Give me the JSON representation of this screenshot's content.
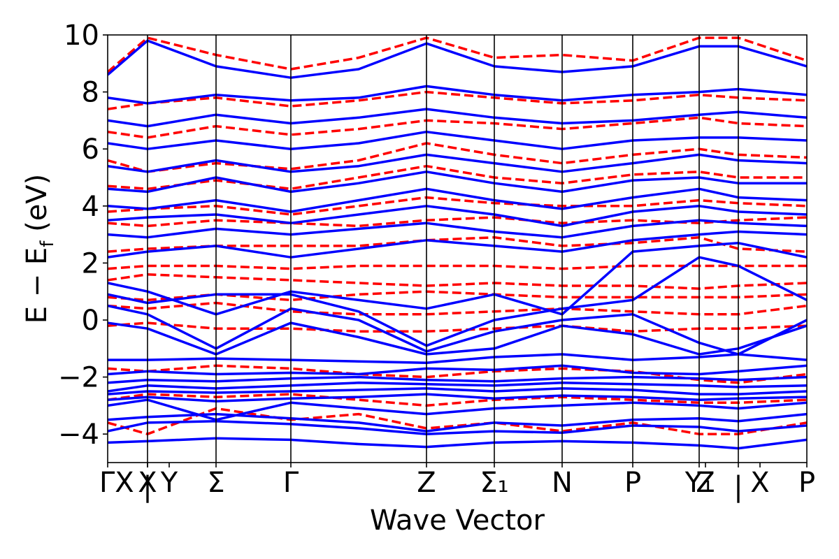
{
  "chart_data": {
    "type": "line",
    "title": "",
    "xlabel": "Wave Vector",
    "ylabel": "E − E_f (eV)",
    "ylabel_main": "E − E",
    "ylabel_sub": "f",
    "ylabel_unit": " (eV)",
    "ylim": [
      -5,
      10
    ],
    "yticks": [
      -4,
      -2,
      0,
      2,
      4,
      6,
      8,
      10
    ],
    "ytick_labels": [
      "−4",
      "−2",
      "0",
      "2",
      "4",
      "6",
      "8",
      "10"
    ],
    "grid": false,
    "legend": "none",
    "kpath": [
      {
        "label": "ΓX",
        "x": 0.0,
        "line": false
      },
      {
        "label": "X",
        "x": 0.57,
        "line": true
      },
      {
        "label": "|",
        "x": 0.57,
        "line": false
      },
      {
        "label": "Y",
        "x": 0.88,
        "line": false
      },
      {
        "label": "Σ",
        "x": 1.55,
        "line": true
      },
      {
        "label": "Γ",
        "x": 2.62,
        "line": true
      },
      {
        "label": "Z",
        "x": 4.56,
        "line": true
      },
      {
        "label": "Σ₁",
        "x": 5.53,
        "line": true
      },
      {
        "label": "N",
        "x": 6.5,
        "line": true
      },
      {
        "label": "P",
        "x": 7.51,
        "line": true
      },
      {
        "label": "Y₁",
        "x": 8.46,
        "line": true
      },
      {
        "label": "Z",
        "x": 8.55,
        "line": false
      },
      {
        "label": "|",
        "x": 9.02,
        "line": true
      },
      {
        "label": "X",
        "x": 9.33,
        "line": false
      },
      {
        "label": "P",
        "x": 10.0,
        "line": false
      }
    ],
    "x": [
      0.0,
      0.57,
      1.55,
      2.62,
      3.59,
      4.56,
      5.53,
      6.5,
      7.51,
      8.46,
      9.02,
      10.0
    ],
    "series": [
      {
        "style": "solid",
        "values": [
          -4.3,
          -4.25,
          -4.15,
          -4.2,
          -4.35,
          -4.45,
          -4.3,
          -4.25,
          -4.3,
          -4.4,
          -4.5,
          -4.2
        ]
      },
      {
        "style": "solid",
        "values": [
          -3.9,
          -3.6,
          -3.55,
          -3.65,
          -3.8,
          -4.0,
          -3.9,
          -3.95,
          -3.7,
          -3.75,
          -3.9,
          -3.7
        ]
      },
      {
        "style": "solid",
        "values": [
          -3.5,
          -3.4,
          -3.3,
          -3.45,
          -3.6,
          -3.9,
          -3.6,
          -3.7,
          -3.5,
          -3.45,
          -3.55,
          -3.3
        ]
      },
      {
        "style": "solid",
        "values": [
          -3.0,
          -2.8,
          -3.5,
          -2.9,
          -3.1,
          -3.3,
          -3.1,
          -3.0,
          -2.9,
          -3.0,
          -3.1,
          -2.9
        ]
      },
      {
        "style": "solid",
        "values": [
          -2.8,
          -2.7,
          -2.85,
          -2.75,
          -2.7,
          -2.6,
          -2.75,
          -2.65,
          -2.7,
          -2.8,
          -2.75,
          -2.7
        ]
      },
      {
        "style": "solid",
        "values": [
          -2.6,
          -2.5,
          -2.55,
          -2.5,
          -2.45,
          -2.4,
          -2.5,
          -2.4,
          -2.45,
          -2.6,
          -2.6,
          -2.5
        ]
      },
      {
        "style": "solid",
        "values": [
          -2.5,
          -2.3,
          -2.4,
          -2.3,
          -2.2,
          -2.25,
          -2.3,
          -2.2,
          -2.25,
          -2.3,
          -2.35,
          -2.3
        ]
      },
      {
        "style": "solid",
        "values": [
          -2.2,
          -2.1,
          -2.15,
          -2.05,
          -2.0,
          -2.1,
          -2.15,
          -2.05,
          -2.0,
          -2.05,
          -2.1,
          -2.0
        ]
      },
      {
        "style": "solid",
        "values": [
          -1.9,
          -1.8,
          -1.9,
          -1.85,
          -1.9,
          -1.7,
          -1.75,
          -1.6,
          -1.85,
          -1.9,
          -1.8,
          -1.6
        ]
      },
      {
        "style": "solid",
        "values": [
          -1.4,
          -1.4,
          -1.35,
          -1.4,
          -1.45,
          -1.5,
          -1.3,
          -1.2,
          -1.4,
          -1.3,
          -1.2,
          -1.4
        ]
      },
      {
        "style": "solid",
        "values": [
          -0.1,
          -0.3,
          -1.2,
          -0.1,
          -0.6,
          -1.2,
          -1.0,
          -0.2,
          -0.5,
          -1.2,
          -1.0,
          -0.2
        ]
      },
      {
        "style": "solid",
        "values": [
          0.5,
          0.2,
          -1.0,
          0.4,
          0.0,
          -1.1,
          -0.4,
          0.0,
          0.2,
          -0.8,
          -1.2,
          0.0
        ]
      },
      {
        "style": "solid",
        "values": [
          0.9,
          0.6,
          0.9,
          0.9,
          0.3,
          -0.9,
          0.0,
          0.4,
          0.7,
          2.2,
          1.9,
          0.7
        ]
      },
      {
        "style": "solid",
        "values": [
          1.3,
          1.0,
          0.2,
          1.0,
          0.7,
          0.4,
          0.9,
          0.2,
          2.4,
          2.6,
          2.7,
          2.2
        ]
      },
      {
        "style": "solid",
        "values": [
          2.2,
          2.4,
          2.6,
          2.2,
          2.5,
          2.8,
          2.6,
          2.4,
          2.8,
          3.0,
          3.1,
          3.0
        ]
      },
      {
        "style": "solid",
        "values": [
          3.0,
          2.9,
          3.2,
          3.0,
          3.2,
          3.4,
          3.1,
          2.9,
          3.3,
          3.5,
          3.4,
          3.3
        ]
      },
      {
        "style": "solid",
        "values": [
          3.5,
          3.6,
          3.7,
          3.4,
          3.7,
          4.0,
          3.7,
          3.3,
          3.8,
          4.0,
          3.8,
          3.7
        ]
      },
      {
        "style": "solid",
        "values": [
          4.0,
          3.9,
          4.2,
          3.8,
          4.2,
          4.6,
          4.2,
          3.9,
          4.3,
          4.6,
          4.3,
          4.2
        ]
      },
      {
        "style": "solid",
        "values": [
          4.6,
          4.5,
          5.0,
          4.5,
          4.8,
          5.2,
          4.8,
          4.5,
          4.9,
          5.0,
          4.8,
          4.8
        ]
      },
      {
        "style": "solid",
        "values": [
          5.4,
          5.2,
          5.6,
          5.2,
          5.4,
          5.8,
          5.5,
          5.2,
          5.5,
          5.8,
          5.6,
          5.5
        ]
      },
      {
        "style": "solid",
        "values": [
          6.2,
          6.0,
          6.3,
          6.0,
          6.2,
          6.6,
          6.3,
          6.0,
          6.3,
          6.4,
          6.4,
          6.3
        ]
      },
      {
        "style": "solid",
        "values": [
          7.0,
          6.8,
          7.2,
          6.9,
          7.1,
          7.4,
          7.1,
          6.9,
          7.0,
          7.2,
          7.3,
          7.1
        ]
      },
      {
        "style": "solid",
        "values": [
          7.8,
          7.6,
          7.9,
          7.7,
          7.8,
          8.2,
          7.9,
          7.7,
          7.9,
          8.0,
          8.1,
          7.9
        ]
      },
      {
        "style": "solid",
        "values": [
          8.6,
          9.8,
          8.9,
          8.5,
          8.8,
          9.7,
          8.9,
          8.7,
          8.9,
          9.6,
          9.6,
          8.9
        ]
      },
      {
        "style": "dashed",
        "values": [
          -3.6,
          -4.0,
          -3.1,
          -3.5,
          -3.3,
          -3.8,
          -3.6,
          -3.9,
          -3.6,
          -4.0,
          -4.0,
          -3.6
        ]
      },
      {
        "style": "dashed",
        "values": [
          -2.8,
          -2.6,
          -2.7,
          -2.6,
          -2.8,
          -3.0,
          -2.8,
          -2.7,
          -2.8,
          -2.9,
          -2.9,
          -2.8
        ]
      },
      {
        "style": "dashed",
        "values": [
          -1.7,
          -1.8,
          -1.6,
          -1.7,
          -1.9,
          -2.0,
          -1.8,
          -1.7,
          -1.8,
          -2.1,
          -2.2,
          -1.9
        ]
      },
      {
        "style": "dashed",
        "values": [
          -0.2,
          -0.1,
          -0.3,
          -0.3,
          -0.4,
          -0.4,
          -0.3,
          -0.2,
          -0.4,
          -0.3,
          -0.3,
          -0.2
        ]
      },
      {
        "style": "dashed",
        "values": [
          0.5,
          0.4,
          0.6,
          0.3,
          0.2,
          0.2,
          0.3,
          0.4,
          0.3,
          0.2,
          0.2,
          0.5
        ]
      },
      {
        "style": "dashed",
        "values": [
          0.8,
          0.7,
          0.9,
          0.7,
          0.9,
          1.0,
          0.9,
          0.8,
          0.8,
          0.8,
          0.8,
          0.9
        ]
      },
      {
        "style": "dashed",
        "values": [
          1.4,
          1.6,
          1.5,
          1.4,
          1.3,
          1.2,
          1.3,
          1.2,
          1.2,
          1.1,
          1.2,
          1.3
        ]
      },
      {
        "style": "dashed",
        "values": [
          1.8,
          1.9,
          1.9,
          1.8,
          1.9,
          1.9,
          1.9,
          1.8,
          1.9,
          1.9,
          1.9,
          1.9
        ]
      },
      {
        "style": "dashed",
        "values": [
          2.4,
          2.5,
          2.6,
          2.6,
          2.6,
          2.8,
          2.9,
          2.6,
          2.7,
          2.9,
          2.5,
          2.4
        ]
      },
      {
        "style": "dashed",
        "values": [
          3.4,
          3.3,
          3.5,
          3.4,
          3.3,
          3.5,
          3.6,
          3.4,
          3.5,
          3.4,
          3.5,
          3.6
        ]
      },
      {
        "style": "dashed",
        "values": [
          3.8,
          3.9,
          4.0,
          3.7,
          4.0,
          4.3,
          4.1,
          4.0,
          4.0,
          4.2,
          4.1,
          4.0
        ]
      },
      {
        "style": "dashed",
        "values": [
          4.7,
          4.6,
          4.9,
          4.6,
          5.0,
          5.4,
          5.0,
          4.8,
          5.1,
          5.2,
          5.0,
          5.0
        ]
      },
      {
        "style": "dashed",
        "values": [
          5.6,
          5.2,
          5.5,
          5.3,
          5.6,
          6.2,
          5.8,
          5.5,
          5.8,
          6.0,
          5.8,
          5.7
        ]
      },
      {
        "style": "dashed",
        "values": [
          6.6,
          6.4,
          6.8,
          6.5,
          6.7,
          7.0,
          6.9,
          6.7,
          6.9,
          7.1,
          6.9,
          6.8
        ]
      },
      {
        "style": "dashed",
        "values": [
          7.4,
          7.6,
          7.8,
          7.5,
          7.7,
          8.0,
          7.8,
          7.6,
          7.7,
          7.9,
          7.8,
          7.7
        ]
      },
      {
        "style": "dashed",
        "values": [
          8.7,
          9.9,
          9.3,
          8.8,
          9.2,
          9.9,
          9.2,
          9.3,
          9.1,
          9.9,
          9.9,
          9.1
        ]
      }
    ],
    "colors": {
      "solid": "#0000ff",
      "dashed": "#ff0000"
    }
  }
}
